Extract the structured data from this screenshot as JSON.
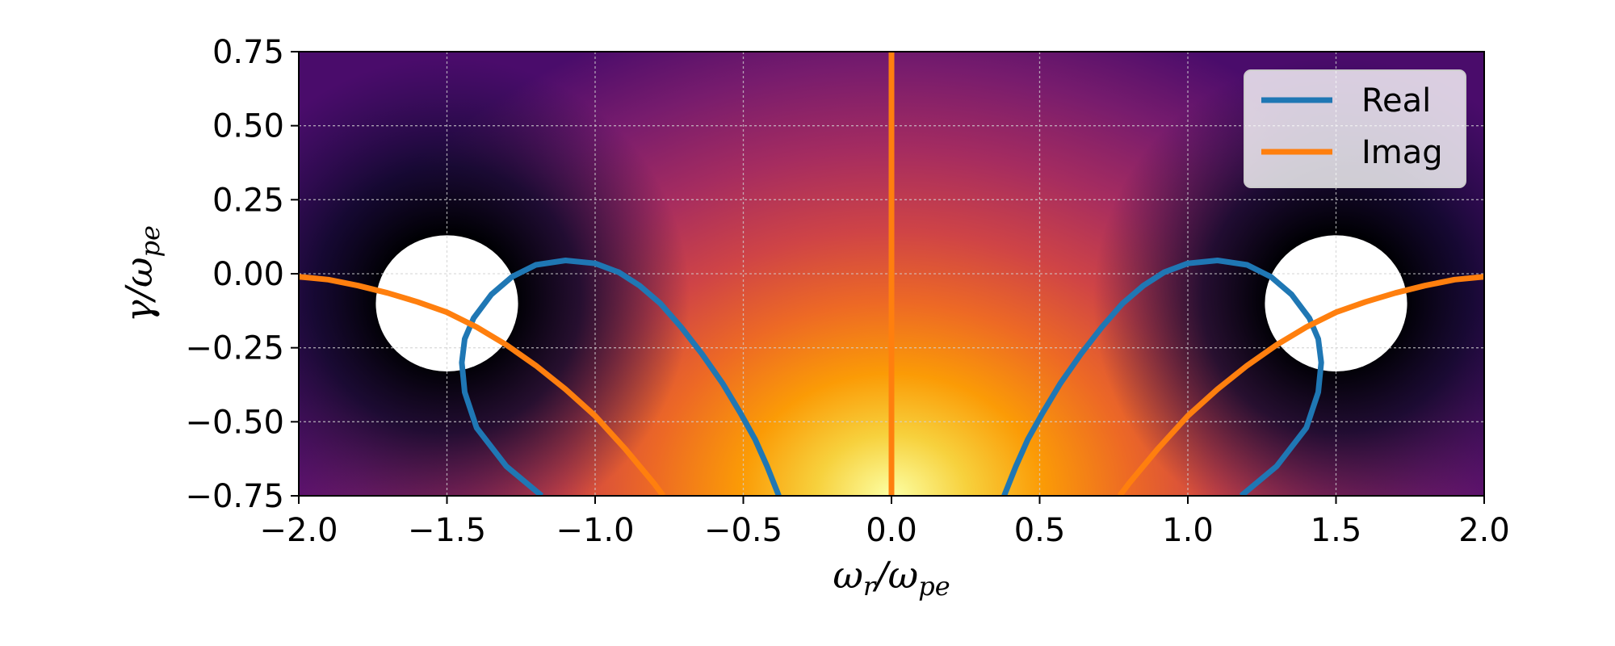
{
  "chart_data": {
    "type": "heatmap",
    "title": "",
    "xlabel": "ωr/ωpe",
    "ylabel": "γ/ωpe",
    "xlabel_parts": {
      "main": "ω",
      "sub1": "r",
      "sep": "/ω",
      "sub2": "pe"
    },
    "ylabel_parts": {
      "main": "γ/ω",
      "sub": "pe"
    },
    "xlim": [
      -2.0,
      2.0
    ],
    "ylim": [
      -0.75,
      0.75
    ],
    "x_ticks": [
      -2.0,
      -1.5,
      -1.0,
      -0.5,
      0.0,
      0.5,
      1.0,
      1.5,
      2.0
    ],
    "x_tick_labels": [
      "−2.0",
      "−1.5",
      "−1.0",
      "−0.5",
      "0.0",
      "0.5",
      "1.0",
      "1.5",
      "2.0"
    ],
    "y_ticks": [
      0.75,
      0.5,
      0.25,
      0.0,
      -0.25,
      -0.5,
      -0.75
    ],
    "y_tick_labels": [
      "0.75",
      "0.50",
      "0.25",
      "0.00",
      "−0.25",
      "−0.50",
      "−0.75"
    ],
    "grid": true,
    "colormap": "inferno",
    "masked_regions": [
      {
        "center": [
          -1.5,
          -0.1
        ],
        "radius_x": 0.24,
        "radius_y": 0.23
      },
      {
        "center": [
          1.5,
          -0.1
        ],
        "radius_x": 0.24,
        "radius_y": 0.23
      }
    ],
    "legend": {
      "placement": "upper-right",
      "entries": [
        "Real",
        "Imag"
      ]
    },
    "series": [
      {
        "name": "Real",
        "color": "#1f77b4",
        "branches": [
          [
            [
              -1.18,
              -0.75
            ],
            [
              -1.3,
              -0.65
            ],
            [
              -1.4,
              -0.52
            ],
            [
              -1.44,
              -0.4
            ],
            [
              -1.45,
              -0.3
            ],
            [
              -1.44,
              -0.22
            ],
            [
              -1.41,
              -0.15
            ],
            [
              -1.35,
              -0.07
            ],
            [
              -1.28,
              -0.01
            ],
            [
              -1.2,
              0.03
            ],
            [
              -1.1,
              0.045
            ],
            [
              -1.0,
              0.035
            ],
            [
              -0.92,
              0.005
            ],
            [
              -0.85,
              -0.04
            ],
            [
              -0.78,
              -0.1
            ],
            [
              -0.71,
              -0.18
            ],
            [
              -0.64,
              -0.27
            ],
            [
              -0.57,
              -0.37
            ],
            [
              -0.51,
              -0.47
            ],
            [
              -0.46,
              -0.56
            ],
            [
              -0.42,
              -0.65
            ],
            [
              -0.38,
              -0.75
            ]
          ],
          [
            [
              1.18,
              -0.75
            ],
            [
              1.3,
              -0.65
            ],
            [
              1.4,
              -0.52
            ],
            [
              1.44,
              -0.4
            ],
            [
              1.45,
              -0.3
            ],
            [
              1.44,
              -0.22
            ],
            [
              1.41,
              -0.15
            ],
            [
              1.35,
              -0.07
            ],
            [
              1.28,
              -0.01
            ],
            [
              1.2,
              0.03
            ],
            [
              1.1,
              0.045
            ],
            [
              1.0,
              0.035
            ],
            [
              0.92,
              0.005
            ],
            [
              0.85,
              -0.04
            ],
            [
              0.78,
              -0.1
            ],
            [
              0.71,
              -0.18
            ],
            [
              0.64,
              -0.27
            ],
            [
              0.57,
              -0.37
            ],
            [
              0.51,
              -0.47
            ],
            [
              0.46,
              -0.56
            ],
            [
              0.42,
              -0.65
            ],
            [
              0.38,
              -0.75
            ]
          ]
        ]
      },
      {
        "name": "Imag",
        "color": "#ff7f0e",
        "branches": [
          [
            [
              -2.0,
              -0.01
            ],
            [
              -1.9,
              -0.02
            ],
            [
              -1.8,
              -0.04
            ],
            [
              -1.7,
              -0.065
            ],
            [
              -1.6,
              -0.095
            ],
            [
              -1.5,
              -0.13
            ],
            [
              -1.4,
              -0.18
            ],
            [
              -1.3,
              -0.24
            ],
            [
              -1.2,
              -0.31
            ],
            [
              -1.1,
              -0.39
            ],
            [
              -1.0,
              -0.48
            ],
            [
              -0.9,
              -0.59
            ],
            [
              -0.8,
              -0.71
            ],
            [
              -0.77,
              -0.75
            ]
          ],
          [
            [
              2.0,
              -0.01
            ],
            [
              1.9,
              -0.02
            ],
            [
              1.8,
              -0.04
            ],
            [
              1.7,
              -0.065
            ],
            [
              1.6,
              -0.095
            ],
            [
              1.5,
              -0.13
            ],
            [
              1.4,
              -0.18
            ],
            [
              1.3,
              -0.24
            ],
            [
              1.2,
              -0.31
            ],
            [
              1.1,
              -0.39
            ],
            [
              1.0,
              -0.48
            ],
            [
              0.9,
              -0.59
            ],
            [
              0.8,
              -0.71
            ],
            [
              0.77,
              -0.75
            ]
          ],
          [
            [
              0.0,
              -0.75
            ],
            [
              0.0,
              0.75
            ]
          ]
        ]
      }
    ]
  }
}
